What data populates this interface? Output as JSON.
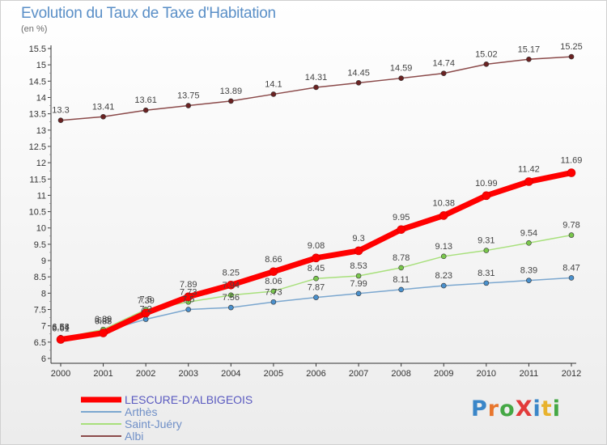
{
  "header": {
    "title": "Evolution du Taux de Taxe d'Habitation",
    "subtitle": "(en %)"
  },
  "logo": {
    "text": "ProXiti",
    "letters": [
      "P",
      "r",
      "o",
      "X",
      "i",
      "t",
      "i"
    ],
    "colors": [
      "#3a86c8",
      "#e8762d",
      "#45a845",
      "#e23b3b",
      "#3a86c8",
      "#e8b22d",
      "#45a845"
    ]
  },
  "chart_data": {
    "type": "line",
    "title": "Evolution du Taux de Taxe d'Habitation",
    "subtitle": "(en %)",
    "x": [
      2000,
      2001,
      2002,
      2003,
      2004,
      2005,
      2006,
      2007,
      2008,
      2009,
      2010,
      2011,
      2012
    ],
    "ylim": [
      6,
      15.5
    ],
    "yticks": [
      6,
      6.5,
      7,
      7.5,
      8,
      8.5,
      9,
      9.5,
      10,
      10.5,
      11,
      11.5,
      12,
      12.5,
      13,
      13.5,
      14,
      14.5,
      15,
      15.5
    ],
    "ytick_labels": [
      "6",
      "6.5",
      "7",
      "7.5",
      "8",
      "8.5",
      "9",
      "9.5",
      "10",
      "10.5",
      "11",
      "11.5",
      "12",
      "12.5",
      "13",
      "13.5",
      "14",
      "14.5",
      "15",
      "15.5"
    ],
    "grid": false,
    "legend_position": "bottom-left",
    "series": [
      {
        "name": "LESCURE-D'ALBIGEOIS",
        "color": "#ff0000",
        "marker": "#ff0000",
        "values": [
          6.58,
          6.78,
          7.39,
          7.89,
          8.25,
          8.66,
          9.08,
          9.3,
          9.95,
          10.38,
          10.99,
          11.42,
          11.69
        ],
        "labels": [
          "6.58",
          "6.8",
          "7.39",
          "7.89",
          "8.25",
          "8.66",
          "9.08",
          "9.3",
          "9.95",
          "10.38",
          "10.99",
          "11.42",
          "11.69"
        ]
      },
      {
        "name": "Arthès",
        "color": "#7ba7cf",
        "marker": "#4a90cc",
        "values": [
          6.64,
          6.83,
          7.2,
          7.5,
          7.56,
          7.73,
          7.87,
          7.99,
          8.11,
          8.23,
          8.31,
          8.39,
          8.47
        ],
        "labels": [
          "6.64",
          "6.83",
          "7.2",
          "7.5",
          "7.56",
          "7.73",
          "7.87",
          "7.99",
          "8.11",
          "8.23",
          "8.31",
          "8.39",
          "8.47"
        ]
      },
      {
        "name": "Saint-Juéry",
        "color": "#a8e07c",
        "marker": "#79c64c",
        "values": [
          6.61,
          6.89,
          7.5,
          7.73,
          7.94,
          8.06,
          8.45,
          8.53,
          8.78,
          9.13,
          9.31,
          9.54,
          9.78
        ],
        "labels": [
          "6.61",
          "6.89",
          "7.5",
          "7.73",
          "7.94",
          "8.06",
          "8.45",
          "8.53",
          "8.78",
          "9.13",
          "9.31",
          "9.54",
          "9.78"
        ]
      },
      {
        "name": "Albi",
        "color": "#8b4a4a",
        "marker": "#6a2222",
        "values": [
          13.3,
          13.41,
          13.61,
          13.75,
          13.89,
          14.1,
          14.31,
          14.45,
          14.59,
          14.74,
          15.02,
          15.17,
          15.25
        ],
        "labels": [
          "13.3",
          "13.41",
          "13.61",
          "13.75",
          "13.89",
          "14.1",
          "14.31",
          "14.45",
          "14.59",
          "14.74",
          "15.02",
          "15.17",
          "15.25"
        ]
      }
    ]
  }
}
